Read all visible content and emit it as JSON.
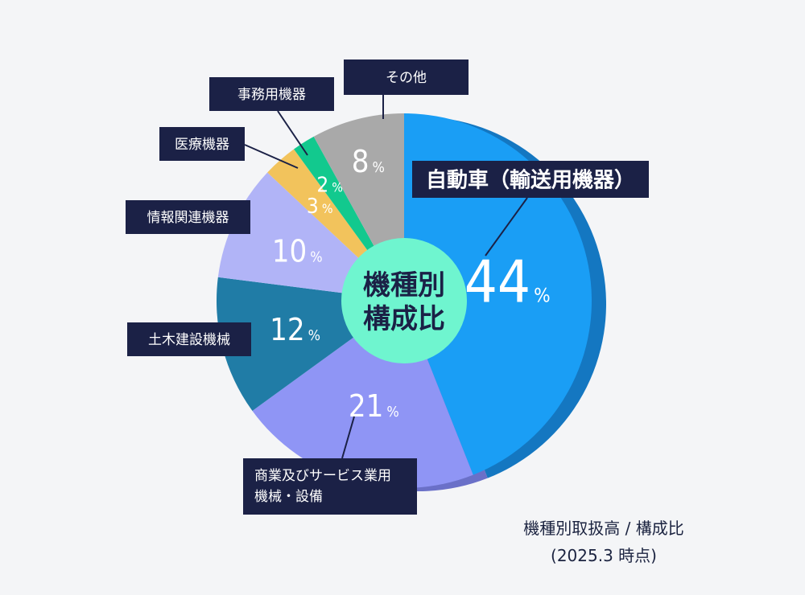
{
  "chart_data": {
    "type": "pie",
    "center_label": [
      "機種別",
      "構成比"
    ],
    "slices": [
      {
        "label": "自動車（輸送用機器）",
        "value": 44,
        "color": "#1a9ef5",
        "text_color": "#ffffff"
      },
      {
        "label": "商業及びサービス業用\n機械・設備",
        "value": 21,
        "color": "#8f95f5",
        "text_color": "#ffffff"
      },
      {
        "label": "土木建設機械",
        "value": 12,
        "color": "#207ca6",
        "text_color": "#ffffff"
      },
      {
        "label": "情報関連機器",
        "value": 10,
        "color": "#b1b4f7",
        "text_color": "#ffffff"
      },
      {
        "label": "医療機器",
        "value": 3,
        "color": "#f2c35c",
        "text_color": "#ffffff"
      },
      {
        "label": "事務用機器",
        "value": 2,
        "color": "#12c98e",
        "text_color": "#ffffff"
      },
      {
        "label": "その他",
        "value": 8,
        "color": "#a9a9a9",
        "text_color": "#ffffff"
      }
    ],
    "value_suffix": "%",
    "colors": {
      "label_box": "#1b2146",
      "center_circle": "#6ff5cf",
      "center_text": "#1b2146",
      "depth_main": "#1477c1",
      "depth_second": "#6a70c8"
    }
  },
  "caption": {
    "line1": "機種別取扱高 / 構成比",
    "line2": "(2025.3 時点)"
  }
}
